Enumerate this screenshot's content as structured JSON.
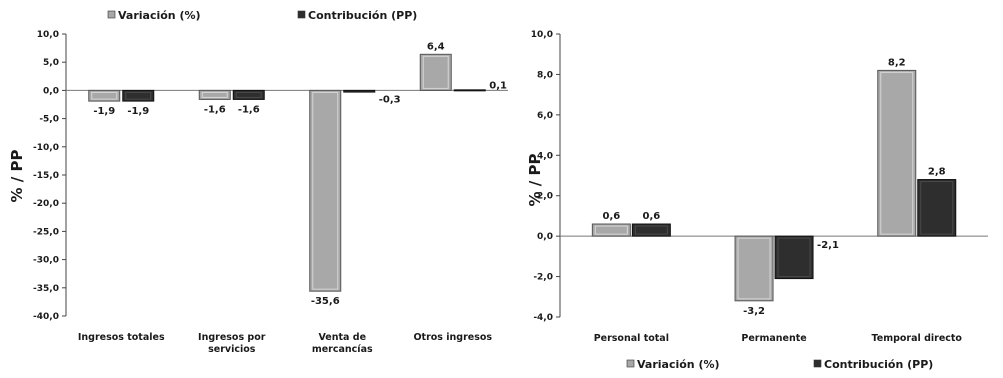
{
  "chart_data": [
    {
      "type": "bar",
      "ylabel": "% / PP",
      "ylim": [
        -40,
        10
      ],
      "yticks": [
        "10,0",
        "5,0",
        "0,0",
        "-5,0",
        "-10,0",
        "-15,0",
        "-20,0",
        "-25,0",
        "-30,0",
        "-35,0",
        "-40,0"
      ],
      "categories": [
        "Ingresos totales",
        "Ingresos por servicios",
        "Venta de mercancías",
        "Otros ingresos"
      ],
      "category_lines": [
        [
          "Ingresos totales"
        ],
        [
          "Ingresos por",
          "servicios"
        ],
        [
          "Venta de",
          "mercancías"
        ],
        [
          "Otros ingresos"
        ]
      ],
      "series": [
        {
          "name": "Variación (%)",
          "values": [
            -1.9,
            -1.6,
            -35.6,
            6.4
          ],
          "labels": [
            "-1,9",
            "-1,6",
            "-35,6",
            "6,4"
          ],
          "color": "#a8a8a8"
        },
        {
          "name": "Contribución (PP)",
          "values": [
            -1.9,
            -1.6,
            -0.3,
            0.1
          ],
          "labels": [
            "-1,9",
            "-1,6",
            "-0,3",
            "0,1"
          ],
          "color": "#2e2e2e"
        }
      ],
      "legend": "top"
    },
    {
      "type": "bar",
      "ylabel": "% / PP",
      "ylim": [
        -4,
        10
      ],
      "yticks": [
        "10,0",
        "8,0",
        "6,0",
        "4,0",
        "2,0",
        "0,0",
        "-2,0",
        "-4,0"
      ],
      "categories": [
        "Personal total",
        "Permanente",
        "Temporal directo"
      ],
      "category_lines": [
        [
          "Personal total"
        ],
        [
          "Permanente"
        ],
        [
          "Temporal directo"
        ]
      ],
      "series": [
        {
          "name": "Variación (%)",
          "values": [
            0.6,
            -3.2,
            8.2
          ],
          "labels": [
            "0,6",
            "-3,2",
            "8,2"
          ],
          "color": "#a8a8a8"
        },
        {
          "name": "Contribución (PP)",
          "values": [
            0.6,
            -2.1,
            2.8
          ],
          "labels": [
            "0,6",
            "-2,1",
            "2,8"
          ],
          "color": "#2e2e2e"
        }
      ],
      "legend": "bottom"
    }
  ]
}
